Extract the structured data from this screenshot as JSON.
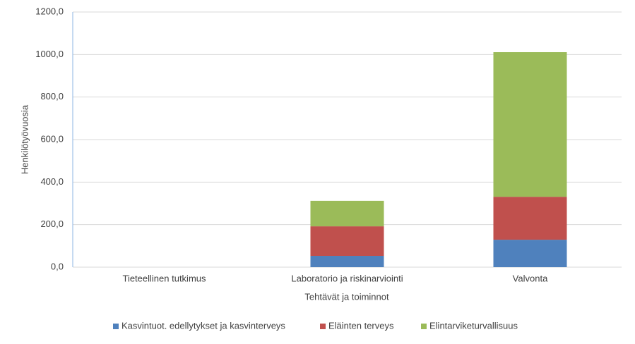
{
  "chart_data": {
    "type": "stacked_bar",
    "y_label": "Henkilötyövuosia",
    "x_label": "Tehtävät ja toiminnot",
    "categories": [
      "Tieteellinen tutkimus",
      "Laboratorio ja riskinarviointi",
      "Valvonta"
    ],
    "series": [
      {
        "name": "Kasvintuot. edellytykset ja kasvinterveys",
        "color": "#4f81bd",
        "values": [
          0,
          53,
          129
        ]
      },
      {
        "name": "Eläinten terveys",
        "color": "#c0504d",
        "values": [
          0,
          139,
          202
        ]
      },
      {
        "name": "Elintarviketurvallisuus",
        "color": "#9bbb59",
        "values": [
          0,
          120,
          680
        ]
      }
    ],
    "ylim": [
      0,
      1200
    ],
    "yticks": [
      {
        "value": 0,
        "label": "0,0"
      },
      {
        "value": 200,
        "label": "200,0"
      },
      {
        "value": 400,
        "label": "400,0"
      },
      {
        "value": 600,
        "label": "600,0"
      },
      {
        "value": 800,
        "label": "800,0"
      },
      {
        "value": 1000,
        "label": "1000,0"
      },
      {
        "value": 1200,
        "label": "1200,0"
      }
    ],
    "grid": true,
    "legend": "bottom"
  }
}
